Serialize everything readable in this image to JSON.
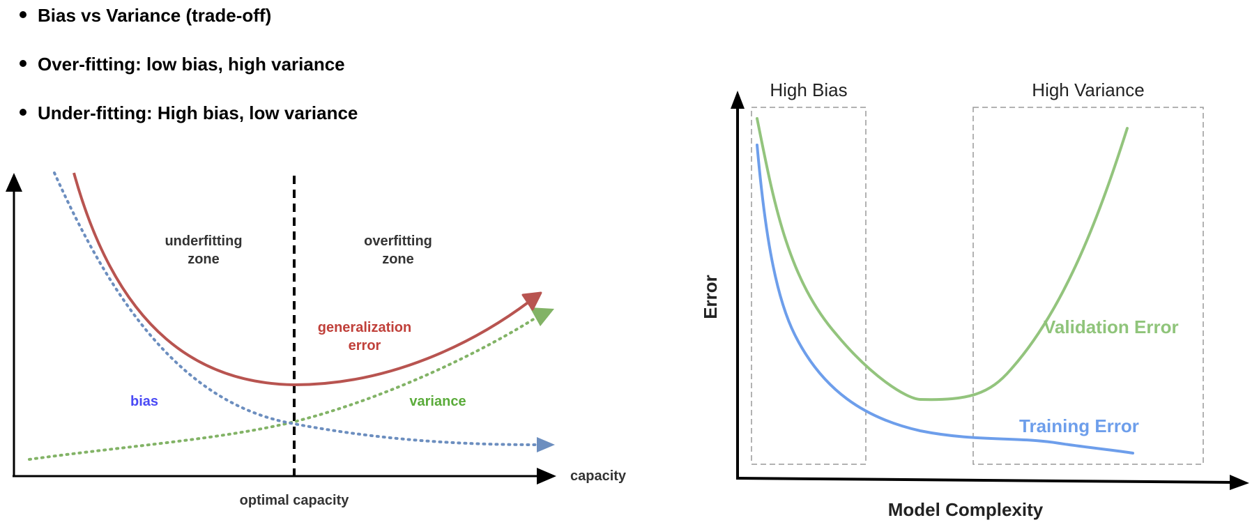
{
  "bullets": [
    "Bias vs Variance (trade-off)",
    "Over-fitting: low bias, high variance",
    "Under-fitting: High bias, low variance"
  ],
  "left_diagram": {
    "zone_left": [
      "underfitting",
      "zone"
    ],
    "zone_right": [
      "overfitting",
      "zone"
    ],
    "gen_error": [
      "generalization",
      "error"
    ],
    "bias": "bias",
    "variance": "variance",
    "x_axis_label": "capacity",
    "optimal": "optimal capacity",
    "colors": {
      "generalization": "#b85450",
      "bias": "#6c8ebf",
      "variance": "#82b366",
      "bias_label": "#4a4af5",
      "variance_label": "#5aab3a",
      "gen_label": "#c0403a"
    }
  },
  "right_diagram": {
    "high_bias": "High Bias",
    "high_variance": "High Variance",
    "y_axis_label": "Error",
    "x_axis_label": "Model Complexity",
    "validation": "Validation Error",
    "training": "Training Error",
    "colors": {
      "validation": "#8fc47a",
      "training": "#6d9eeb"
    }
  }
}
